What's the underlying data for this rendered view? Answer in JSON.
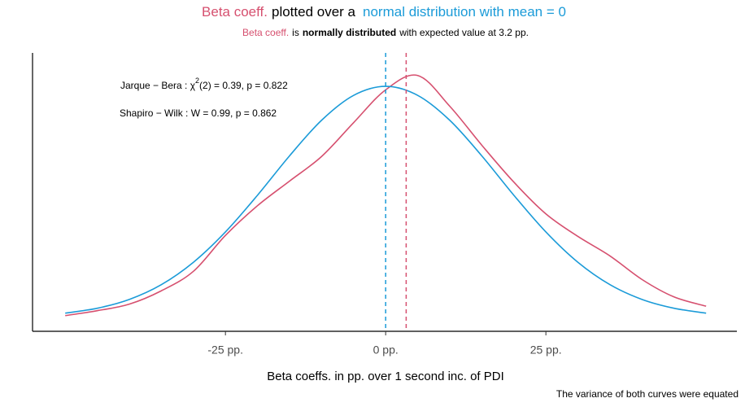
{
  "chart_data": {
    "type": "line",
    "title": "plotted over a",
    "subtitle": [
      "is",
      "normally distributed",
      "with expected value at 3.2 pp."
    ],
    "annotations": [
      [
        "Jarque − Bera : χ",
        "2",
        "(2) = 0.39,  p = 0.822"
      ],
      [
        "Shapiro − Wilk : W = 0.99,  p = 0.862"
      ]
    ],
    "x_label": "Beta coeffs. in pp. over 1 second inc. of PDI",
    "caption": "The variance of both curves were equated",
    "x": [
      -50,
      -45,
      -40,
      -35,
      -30,
      -25,
      -20,
      -15,
      -10,
      -5,
      0,
      5,
      10,
      15,
      20,
      25,
      30,
      35,
      40,
      45,
      50
    ],
    "series": [
      {
        "name": "Beta coeff.",
        "color": "#d6506f",
        "values": [
          0.00018,
          0.00066,
          0.0013,
          0.0026,
          0.0045,
          0.008,
          0.0109,
          0.0133,
          0.0157,
          0.019,
          0.0222,
          0.0236,
          0.0206,
          0.0168,
          0.0132,
          0.0101,
          0.0079,
          0.006,
          0.0037,
          0.002,
          0.0011
        ]
      },
      {
        "name": "normal distribution with mean = 0",
        "color": "#1b9bd8",
        "values": [
          0.00042,
          0.0009,
          0.00176,
          0.0032,
          0.00538,
          0.00834,
          0.01192,
          0.01576,
          0.01923,
          0.02166,
          0.02254,
          0.02166,
          0.01923,
          0.01576,
          0.01192,
          0.00834,
          0.00538,
          0.0032,
          0.00176,
          0.0009,
          0.00042
        ]
      }
    ],
    "vlines": [
      {
        "x": 3.2,
        "color": "#d6506f"
      },
      {
        "x": 0,
        "color": "#1b9bd8"
      }
    ],
    "xlim": [
      -55.1,
      54.8
    ],
    "ylim": [
      -0.00135,
      0.0258
    ],
    "xticks": [
      {
        "value": -25,
        "label": "-25 pp."
      },
      {
        "value": 0,
        "label": "0 pp."
      },
      {
        "value": 25,
        "label": "25 pp."
      }
    ]
  }
}
